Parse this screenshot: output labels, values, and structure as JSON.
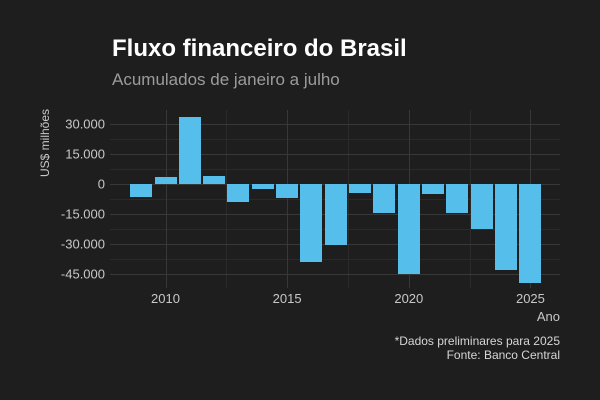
{
  "title": "Fluxo financeiro do Brasil",
  "subtitle": "Acumulados de janeiro a julho",
  "footnote": {
    "line1": "*Dados preliminares para 2025",
    "line2": "Fonte: Banco Central"
  },
  "chart_data": {
    "type": "bar",
    "title": "Fluxo financeiro do Brasil",
    "subtitle": "Acumulados de janeiro a julho",
    "xlabel": "Ano",
    "ylabel": "US$ milhões",
    "categories": [
      2009,
      2010,
      2011,
      2012,
      2013,
      2014,
      2015,
      2016,
      2017,
      2018,
      2019,
      2020,
      2021,
      2022,
      2023,
      2024,
      2025
    ],
    "values": [
      -6400,
      3500,
      33500,
      4200,
      -8800,
      -2700,
      -7100,
      -38900,
      -30500,
      -4300,
      -14300,
      -45200,
      -5100,
      -14700,
      -22600,
      -43000,
      -49400
    ],
    "bar_color": "#56beeb",
    "ylim": [
      -52000,
      37000
    ],
    "yticks": [
      30000,
      15000,
      0,
      -15000,
      -30000,
      -45000
    ],
    "ytick_labels": [
      "30.000",
      "15.000",
      "0",
      "-15.000",
      "-30.000",
      "-45.000"
    ],
    "yticks_minor": [
      37500,
      22500,
      7500,
      -7500,
      -22500,
      -37500
    ],
    "xticks": [
      2010,
      2015,
      2020,
      2025
    ],
    "xticks_minor": [
      2012.5,
      2017.5,
      2022.5
    ],
    "grid": true,
    "legend": false
  }
}
